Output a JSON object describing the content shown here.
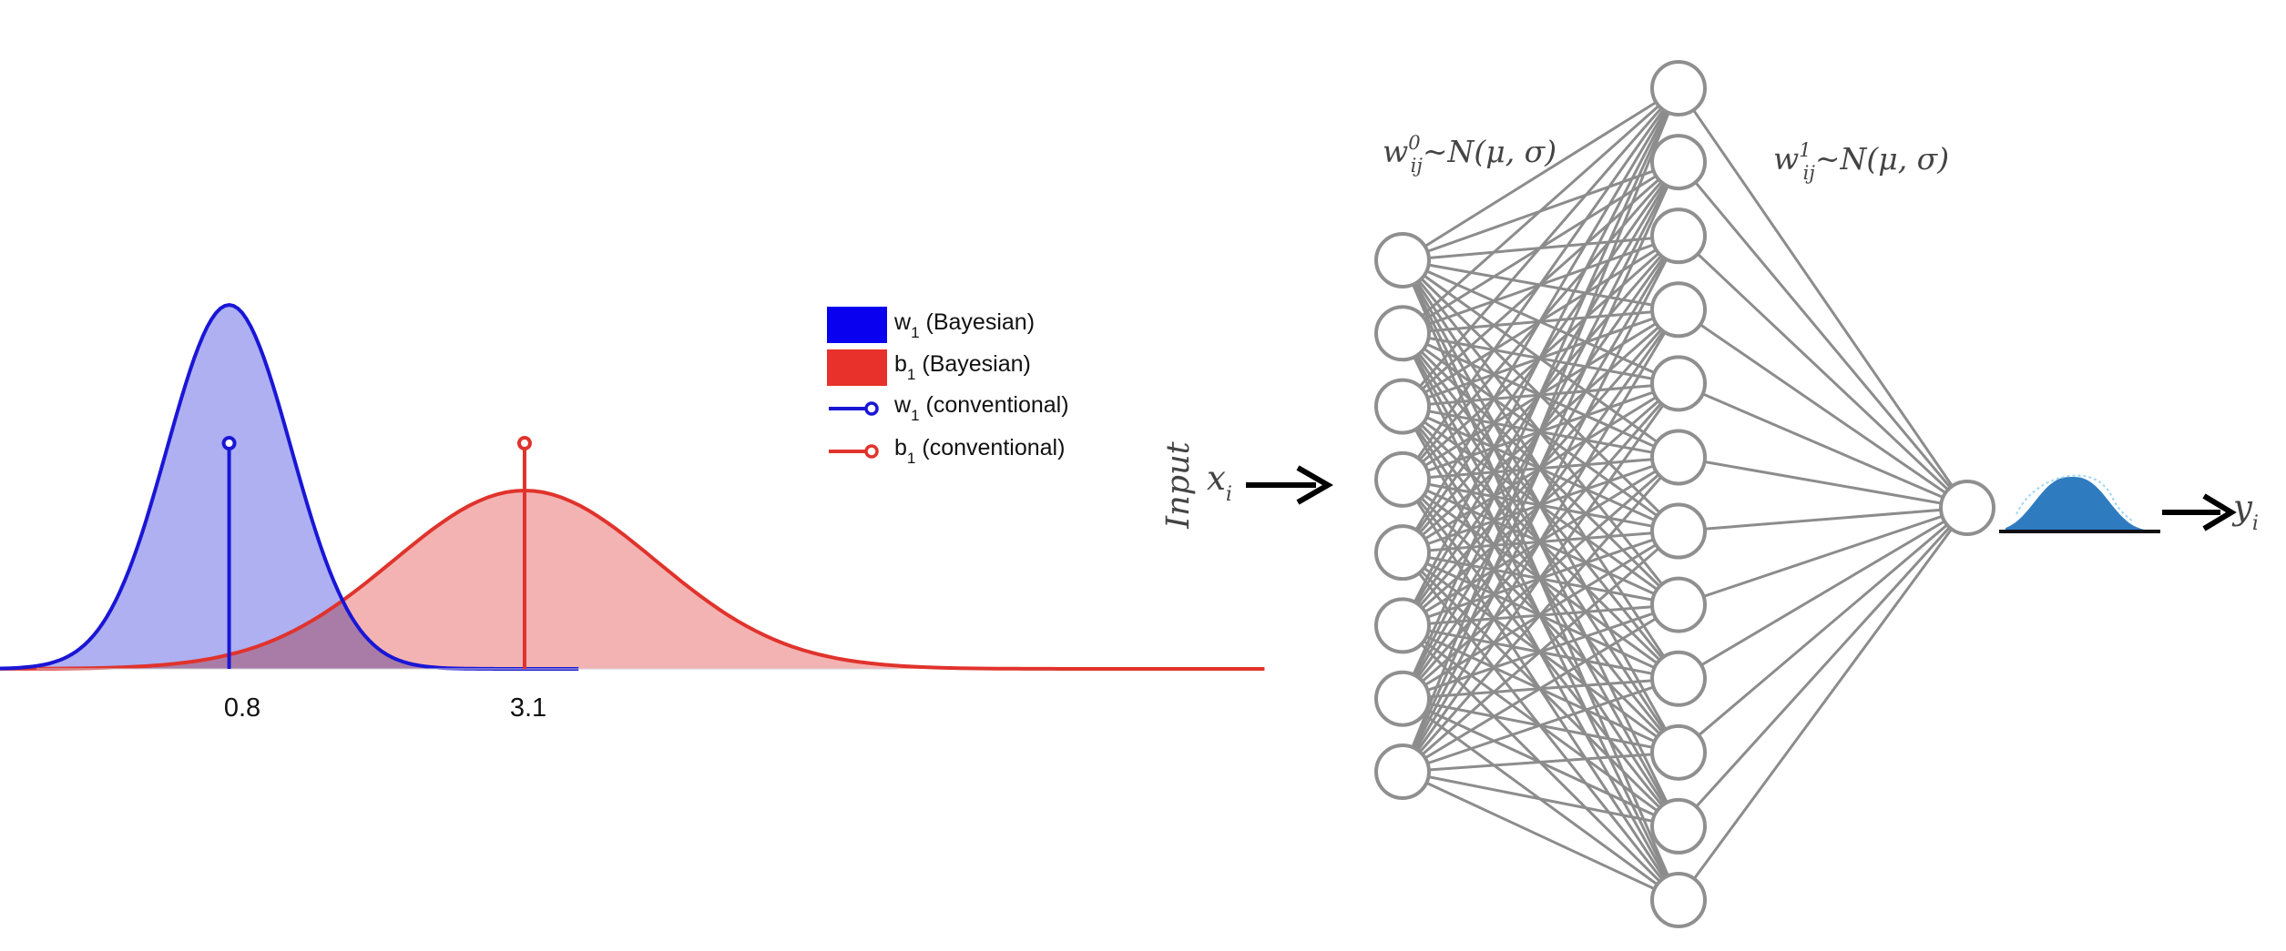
{
  "distribution_panel": {
    "tick_labels": [
      "0.8",
      "3.1"
    ],
    "legend": [
      {
        "symbol": "w",
        "sub": "1",
        "text": "(Bayesian)",
        "style": "patch",
        "color": "#0a00f0"
      },
      {
        "symbol": "b",
        "sub": "1",
        "text": "(Bayesian)",
        "style": "patch",
        "color": "#e8312a"
      },
      {
        "symbol": "w",
        "sub": "1",
        "text": "(conventional)",
        "style": "stem",
        "color": "#1a16d6"
      },
      {
        "symbol": "b",
        "sub": "1",
        "text": "(conventional)",
        "style": "stem",
        "color": "#e0332c"
      }
    ],
    "curves": [
      {
        "name": "w1",
        "mean": 0.8,
        "width": 0.85,
        "peak": 1.0,
        "fill": "#aeb0f2",
        "line": "#1a16d6"
      },
      {
        "name": "b1",
        "mean": 3.1,
        "width": 1.8,
        "peak": 0.49,
        "fill": "#f4b3b3",
        "line": "#e0332c"
      }
    ],
    "stems": [
      {
        "value": 0.8,
        "height": 0.62,
        "color": "#1a16d6"
      },
      {
        "value": 3.1,
        "height": 0.62,
        "color": "#e0332c"
      }
    ],
    "x_range": [
      -0.7,
      6.0
    ]
  },
  "network": {
    "input_label": "Input",
    "x_symbol": "x",
    "x_sub": "i",
    "y_symbol": "y",
    "y_sub": "i",
    "w0_label": {
      "w": "w",
      "sup": "0",
      "sub": "ij",
      "rest": "~N(μ, σ)"
    },
    "w1_label": {
      "w": "w",
      "sup": "1",
      "sub": "ij",
      "rest": "~N(μ, σ)"
    },
    "layers": [
      8,
      12,
      1
    ],
    "edge_color": "#8c8c8c",
    "node_stroke": "#8f8f8f",
    "output_dist_color": "#2f7bbf"
  }
}
